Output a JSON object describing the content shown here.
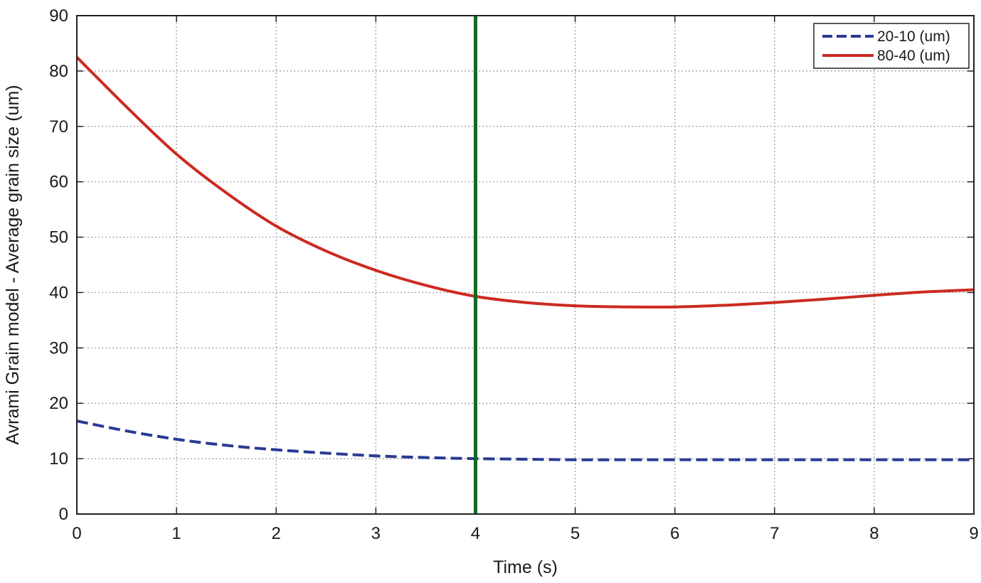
{
  "chart_data": {
    "type": "line",
    "xlabel": "Time (s)",
    "ylabel": "Avrami Grain model - Average grain size (um)",
    "xlim": [
      0,
      9
    ],
    "ylim": [
      0,
      90
    ],
    "xticks": [
      "0",
      "1",
      "2",
      "3",
      "4",
      "5",
      "6",
      "7",
      "8",
      "9"
    ],
    "yticks": [
      "0",
      "10",
      "20",
      "30",
      "40",
      "50",
      "60",
      "70",
      "80",
      "90"
    ],
    "grid": true,
    "legend_position": "top-right",
    "x": [
      0,
      0.5,
      1,
      1.5,
      2,
      2.5,
      3,
      3.5,
      4,
      4.5,
      5,
      5.5,
      6,
      6.5,
      7,
      7.5,
      8,
      8.5,
      9
    ],
    "series": [
      {
        "name": "20-10 (um)",
        "color": "#2b3a93",
        "style": "dashed",
        "values": [
          16.8,
          15.0,
          13.5,
          12.4,
          11.6,
          11.0,
          10.5,
          10.2,
          10.0,
          9.9,
          9.8,
          9.8,
          9.8,
          9.8,
          9.8,
          9.8,
          9.8,
          9.8,
          9.8
        ]
      },
      {
        "name": "80-40 (um)",
        "color": "#cc2a22",
        "style": "solid",
        "values": [
          82.5,
          73.5,
          65.0,
          58.0,
          52.0,
          47.5,
          44.0,
          41.3,
          39.3,
          38.2,
          37.6,
          37.4,
          37.4,
          37.7,
          38.2,
          38.8,
          39.5,
          40.1,
          40.5
        ]
      }
    ],
    "marker_line": {
      "x": 4,
      "color": "#0d6b1f"
    }
  }
}
